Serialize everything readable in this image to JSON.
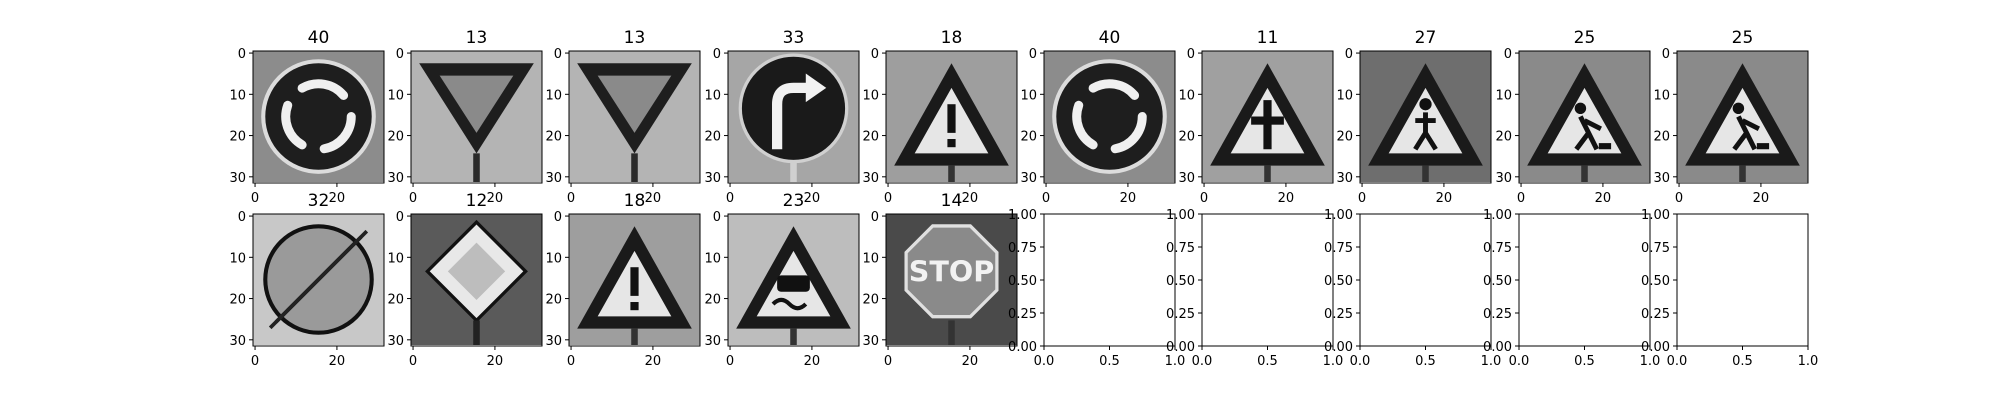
{
  "colors": {
    "background": "#ffffff",
    "axis": "#000000",
    "text": "#000000"
  },
  "chart_data": {
    "type": "image_grid",
    "rows": 2,
    "cols": 10,
    "panels": [
      {
        "kind": "image",
        "title": "40",
        "content": "roundabout-sign",
        "xticks": [
          "0",
          "20"
        ],
        "yticks": [
          "0",
          "10",
          "20",
          "30"
        ]
      },
      {
        "kind": "image",
        "title": "13",
        "content": "yield-sign",
        "xticks": [
          "0",
          "20"
        ],
        "yticks": [
          "0",
          "10",
          "20",
          "30"
        ]
      },
      {
        "kind": "image",
        "title": "13",
        "content": "yield-sign",
        "xticks": [
          "0",
          "20"
        ],
        "yticks": [
          "0",
          "10",
          "20",
          "30"
        ]
      },
      {
        "kind": "image",
        "title": "33",
        "content": "turn-right-ahead-sign",
        "xticks": [
          "0",
          "20"
        ],
        "yticks": [
          "0",
          "10",
          "20",
          "30"
        ]
      },
      {
        "kind": "image",
        "title": "18",
        "content": "general-caution-sign",
        "xticks": [
          "0",
          "20"
        ],
        "yticks": [
          "0",
          "10",
          "20",
          "30"
        ]
      },
      {
        "kind": "image",
        "title": "40",
        "content": "roundabout-sign",
        "xticks": [
          "0",
          "20"
        ],
        "yticks": [
          "0",
          "10",
          "20",
          "30"
        ]
      },
      {
        "kind": "image",
        "title": "11",
        "content": "right-of-way-sign",
        "xticks": [
          "0",
          "20"
        ],
        "yticks": [
          "0",
          "10",
          "20",
          "30"
        ]
      },
      {
        "kind": "image",
        "title": "27",
        "content": "pedestrians-sign",
        "xticks": [
          "0",
          "20"
        ],
        "yticks": [
          "0",
          "10",
          "20",
          "30"
        ]
      },
      {
        "kind": "image",
        "title": "25",
        "content": "road-work-sign",
        "xticks": [
          "0",
          "20"
        ],
        "yticks": [
          "0",
          "10",
          "20",
          "30"
        ]
      },
      {
        "kind": "image",
        "title": "25",
        "content": "road-work-sign",
        "xticks": [
          "0",
          "20"
        ],
        "yticks": [
          "0",
          "10",
          "20",
          "30"
        ]
      },
      {
        "kind": "image",
        "title": "32",
        "content": "end-of-limits-sign",
        "xticks": [
          "0",
          "20"
        ],
        "yticks": [
          "0",
          "10",
          "20",
          "30"
        ]
      },
      {
        "kind": "image",
        "title": "12",
        "content": "priority-road-sign",
        "xticks": [
          "0",
          "20"
        ],
        "yticks": [
          "0",
          "10",
          "20",
          "30"
        ]
      },
      {
        "kind": "image",
        "title": "18",
        "content": "general-caution-sign",
        "xticks": [
          "0",
          "20"
        ],
        "yticks": [
          "0",
          "10",
          "20",
          "30"
        ]
      },
      {
        "kind": "image",
        "title": "23",
        "content": "slippery-road-sign",
        "xticks": [
          "0",
          "20"
        ],
        "yticks": [
          "0",
          "10",
          "20",
          "30"
        ]
      },
      {
        "kind": "image",
        "title": "14",
        "content": "stop-sign",
        "sign_text": "STOP",
        "xticks": [
          "0",
          "20"
        ],
        "yticks": [
          "0",
          "10",
          "20",
          "30"
        ]
      },
      {
        "kind": "empty",
        "title": "",
        "xticks": [
          "0.0",
          "0.5",
          "1.0"
        ],
        "yticks": [
          "0.00",
          "0.25",
          "0.50",
          "0.75",
          "1.00"
        ]
      },
      {
        "kind": "empty",
        "title": "",
        "xticks": [
          "0.0",
          "0.5",
          "1.0"
        ],
        "yticks": [
          "0.00",
          "0.25",
          "0.50",
          "0.75",
          "1.00"
        ]
      },
      {
        "kind": "empty",
        "title": "",
        "xticks": [
          "0.0",
          "0.5",
          "1.0"
        ],
        "yticks": [
          "0.00",
          "0.25",
          "0.50",
          "0.75",
          "1.00"
        ]
      },
      {
        "kind": "empty",
        "title": "",
        "xticks": [
          "0.0",
          "0.5",
          "1.0"
        ],
        "yticks": [
          "0.00",
          "0.25",
          "0.50",
          "0.75",
          "1.00"
        ]
      },
      {
        "kind": "empty",
        "title": "",
        "xticks": [
          "0.0",
          "0.5",
          "1.0"
        ],
        "yticks": [
          "0.00",
          "0.25",
          "0.50",
          "0.75",
          "1.00"
        ]
      }
    ]
  }
}
